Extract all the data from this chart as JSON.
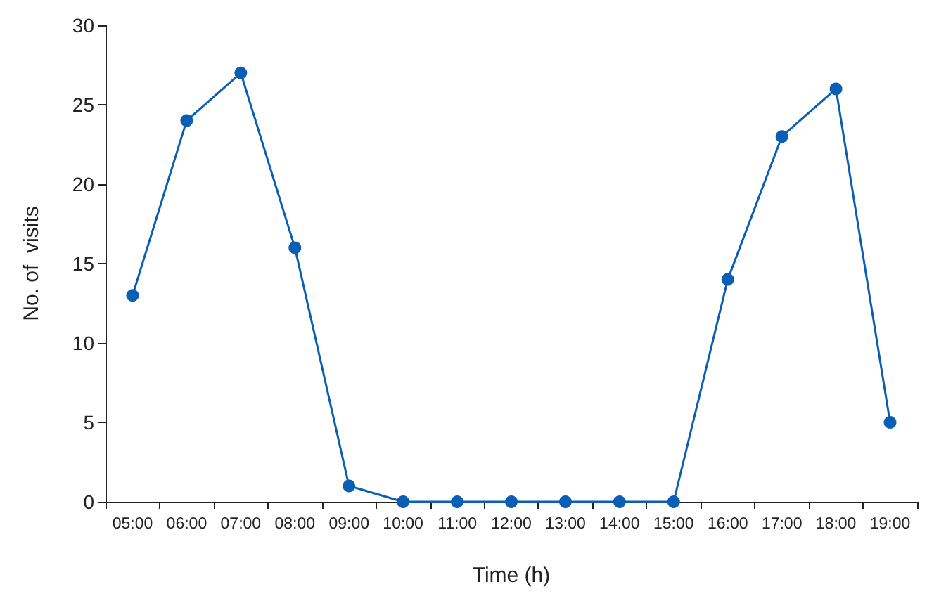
{
  "chart_data": {
    "type": "line",
    "xlabel": "Time (h)",
    "ylabel": "No. of  visits",
    "categories": [
      "05:00",
      "06:00",
      "07:00",
      "08:00",
      "09:00",
      "10:00",
      "11:00",
      "12:00",
      "13:00",
      "14:00",
      "15:00",
      "16:00",
      "17:00",
      "18:00",
      "19:00"
    ],
    "series": [
      {
        "color": "#0a5fb4",
        "values": [
          13,
          24,
          27,
          16,
          1,
          0,
          0,
          0,
          0,
          0,
          0,
          14,
          23,
          26,
          5
        ]
      }
    ],
    "ylim": [
      0,
      30
    ],
    "yticks": [
      0,
      5,
      10,
      15,
      20,
      25,
      30
    ],
    "grid": false,
    "marker": "circle",
    "line_style": "solid"
  }
}
